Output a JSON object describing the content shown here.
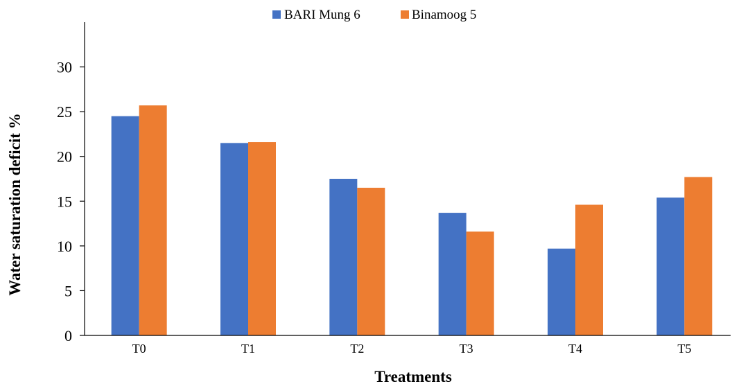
{
  "chart_data": {
    "type": "bar",
    "categories": [
      "T0",
      "T1",
      "T2",
      "T3",
      "T4",
      "T5"
    ],
    "series": [
      {
        "name": "BARI Mung 6",
        "color": "#4472C4",
        "values": [
          24.5,
          21.5,
          17.5,
          13.7,
          9.7,
          15.4
        ]
      },
      {
        "name": "Binamoog 5",
        "color": "#ED7D31",
        "values": [
          25.7,
          21.6,
          16.5,
          11.6,
          14.6,
          17.7
        ]
      }
    ],
    "xlabel": "Treatments",
    "ylabel": "Water saturation deficit %",
    "ylim": [
      0,
      35
    ],
    "yticks": [
      0,
      5,
      10,
      15,
      20,
      25,
      30
    ],
    "grid": false,
    "legend": "top-center"
  }
}
